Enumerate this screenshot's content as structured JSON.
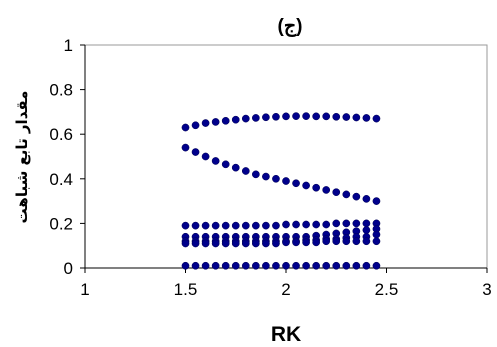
{
  "chart_data": {
    "type": "scatter",
    "title": "(ج)",
    "xlabel": "RK",
    "ylabel": "مقدار تابع شباهت",
    "xlim": [
      1,
      3
    ],
    "ylim": [
      0,
      1
    ],
    "xticks": [
      "1",
      "1.5",
      "2",
      "2.5",
      "3"
    ],
    "yticks": [
      "0",
      "0.2",
      "0.4",
      "0.6",
      "0.8",
      "1"
    ],
    "grid": false,
    "marker_color": "#00008B",
    "series": [
      {
        "x": [
          1.5,
          1.55,
          1.6,
          1.65,
          1.7,
          1.75,
          1.8,
          1.85,
          1.9,
          1.95,
          2.0,
          2.05,
          2.1,
          2.15,
          2.2,
          2.25,
          2.3,
          2.35,
          2.4,
          2.45
        ],
        "y": [
          0.63,
          0.64,
          0.65,
          0.655,
          0.66,
          0.665,
          0.67,
          0.673,
          0.676,
          0.678,
          0.68,
          0.681,
          0.681,
          0.68,
          0.68,
          0.678,
          0.677,
          0.675,
          0.673,
          0.67
        ]
      },
      {
        "x": [
          1.5,
          1.55,
          1.6,
          1.65,
          1.7,
          1.75,
          1.8,
          1.85,
          1.9,
          1.95,
          2.0,
          2.05,
          2.1,
          2.15,
          2.2,
          2.25,
          2.3,
          2.35,
          2.4,
          2.45
        ],
        "y": [
          0.54,
          0.52,
          0.5,
          0.48,
          0.465,
          0.45,
          0.435,
          0.42,
          0.41,
          0.4,
          0.39,
          0.38,
          0.37,
          0.36,
          0.35,
          0.34,
          0.33,
          0.32,
          0.31,
          0.3
        ]
      },
      {
        "x": [
          1.5,
          1.55,
          1.6,
          1.65,
          1.7,
          1.75,
          1.8,
          1.85,
          1.9,
          1.95,
          2.0,
          2.05,
          2.1,
          2.15,
          2.2,
          2.25,
          2.3,
          2.35,
          2.4,
          2.45
        ],
        "y": [
          0.19,
          0.19,
          0.19,
          0.19,
          0.19,
          0.19,
          0.19,
          0.19,
          0.19,
          0.19,
          0.195,
          0.195,
          0.195,
          0.195,
          0.195,
          0.2,
          0.2,
          0.2,
          0.2,
          0.2
        ]
      },
      {
        "x": [
          1.5,
          1.55,
          1.6,
          1.65,
          1.7,
          1.75,
          1.8,
          1.85,
          1.9,
          1.95,
          2.0,
          2.05,
          2.1,
          2.15,
          2.2,
          2.25,
          2.3,
          2.35,
          2.4,
          2.45
        ],
        "y": [
          0.14,
          0.14,
          0.14,
          0.14,
          0.14,
          0.14,
          0.14,
          0.14,
          0.14,
          0.14,
          0.14,
          0.14,
          0.14,
          0.145,
          0.15,
          0.155,
          0.16,
          0.165,
          0.17,
          0.175
        ]
      },
      {
        "x": [
          1.5,
          1.55,
          1.6,
          1.65,
          1.7,
          1.75,
          1.8,
          1.85,
          1.9,
          1.95,
          2.0,
          2.05,
          2.1,
          2.15,
          2.2,
          2.25,
          2.3,
          2.35,
          2.4,
          2.45
        ],
        "y": [
          0.12,
          0.12,
          0.12,
          0.12,
          0.12,
          0.12,
          0.12,
          0.12,
          0.12,
          0.12,
          0.12,
          0.12,
          0.125,
          0.125,
          0.13,
          0.13,
          0.135,
          0.14,
          0.14,
          0.15
        ]
      },
      {
        "x": [
          1.5,
          1.55,
          1.6,
          1.65,
          1.7,
          1.75,
          1.8,
          1.85,
          1.9,
          1.95,
          2.0,
          2.05,
          2.1,
          2.15,
          2.2,
          2.25,
          2.3,
          2.35,
          2.4,
          2.45
        ],
        "y": [
          0.11,
          0.11,
          0.11,
          0.11,
          0.11,
          0.11,
          0.11,
          0.11,
          0.11,
          0.11,
          0.115,
          0.115,
          0.115,
          0.115,
          0.12,
          0.12,
          0.12,
          0.12,
          0.12,
          0.12
        ]
      },
      {
        "x": [
          1.5,
          1.55,
          1.6,
          1.65,
          1.7,
          1.75,
          1.8,
          1.85,
          1.9,
          1.95,
          2.0,
          2.05,
          2.1,
          2.15,
          2.2,
          2.25,
          2.3,
          2.35,
          2.4,
          2.45
        ],
        "y": [
          0.01,
          0.01,
          0.01,
          0.01,
          0.01,
          0.01,
          0.01,
          0.01,
          0.01,
          0.01,
          0.01,
          0.01,
          0.01,
          0.01,
          0.01,
          0.01,
          0.01,
          0.01,
          0.01,
          0.01
        ]
      }
    ]
  }
}
